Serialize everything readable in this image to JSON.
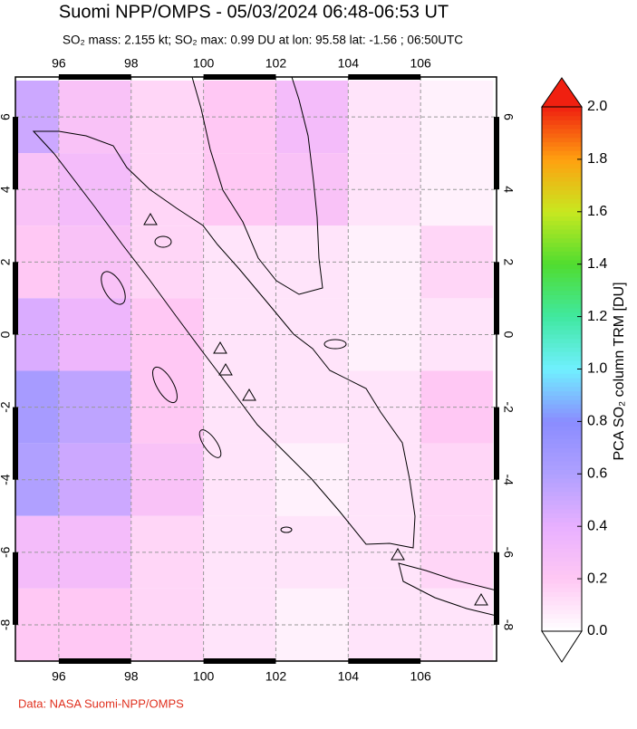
{
  "chart_data": {
    "type": "map-grid",
    "title": "Suomi NPP/OMPS - 05/03/2024 06:48-06:53 UT",
    "subtitle": "SO₂ mass: 2.155 kt; SO₂ max: 0.99 DU at lon: 95.58 lat: -1.56 ; 06:50UTC",
    "x": [
      95,
      97,
      99,
      101,
      103,
      105,
      107
    ],
    "y": [
      6,
      4,
      2,
      0,
      -2,
      -4,
      -6,
      -8
    ],
    "values": [
      [
        0.5,
        0.25,
        0.15,
        0.2,
        0.3,
        0.1,
        0.05
      ],
      [
        0.25,
        0.3,
        0.15,
        0.2,
        0.25,
        0.1,
        0.05
      ],
      [
        0.2,
        0.25,
        0.15,
        0.1,
        0.1,
        0.05,
        0.15
      ],
      [
        0.45,
        0.35,
        0.2,
        0.1,
        0.1,
        0.05,
        0.1
      ],
      [
        0.65,
        0.55,
        0.2,
        0.1,
        0.1,
        0.1,
        0.2
      ],
      [
        0.6,
        0.5,
        0.25,
        0.1,
        0.05,
        0.1,
        0.15
      ],
      [
        0.3,
        0.3,
        0.15,
        0.1,
        0.1,
        0.1,
        0.15
      ],
      [
        0.2,
        0.2,
        0.15,
        0.1,
        0.05,
        0.1,
        0.1
      ]
    ],
    "xlim": [
      94.8,
      108.1
    ],
    "ylim": [
      -9.0,
      7.1
    ],
    "xticks": [
      96,
      98,
      100,
      102,
      104,
      106
    ],
    "yticks": [
      -8,
      -6,
      -4,
      -2,
      0,
      2,
      4,
      6
    ],
    "grid": true,
    "colorbar_label": "PCA SO₂ column TRM [DU]",
    "clim": [
      0,
      2
    ],
    "cticks": [
      {
        "value": 0,
        "label": "0.0"
      },
      0.2,
      0.4,
      0.6,
      0.8,
      {
        "value": 1,
        "label": "1.0"
      },
      1.2,
      1.4,
      1.6,
      1.8,
      {
        "value": 2,
        "label": "2.0"
      }
    ],
    "colorscale": [
      "#ffffff",
      "#ffc8f4",
      "#e8b0ff",
      "#b0a0ff",
      "#8a8cff",
      "#70f0ff",
      "#40e8a0",
      "#50dc30",
      "#c8e820",
      "#ffa010",
      "#f02010"
    ],
    "credit": "Data: NASA Suomi-NPP/OMPS"
  }
}
